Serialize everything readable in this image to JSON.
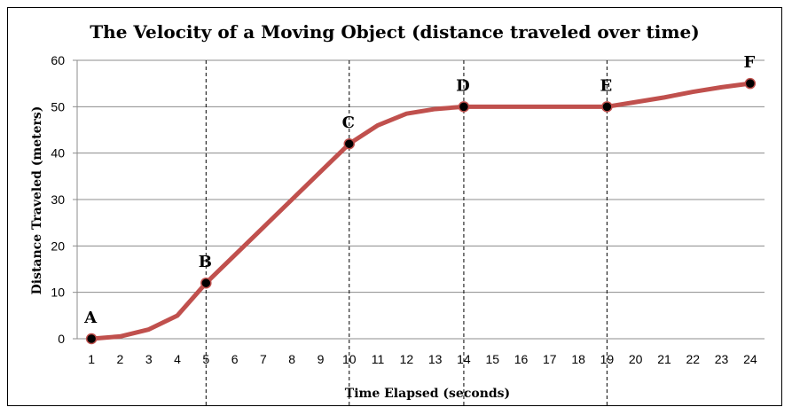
{
  "chart_data": {
    "type": "line",
    "title": "The Velocity of a Moving Object (distance traveled over time)",
    "xlabel": "Time Elapsed (seconds)",
    "ylabel": "Distance Traveled (meters)",
    "categories": [
      1,
      2,
      3,
      4,
      5,
      6,
      7,
      8,
      9,
      10,
      11,
      12,
      13,
      14,
      15,
      16,
      17,
      18,
      19,
      20,
      21,
      22,
      23,
      24
    ],
    "series": [
      {
        "color": "#c0504d",
        "values": [
          0,
          0.5,
          2,
          5,
          12,
          18,
          24,
          30,
          36,
          42,
          46,
          48.5,
          49.5,
          50,
          50,
          50,
          50,
          50,
          50,
          51,
          52,
          53.2,
          54.2,
          55
        ]
      }
    ],
    "ylim": [
      0,
      60
    ],
    "yticks": [
      0,
      10,
      20,
      30,
      40,
      50,
      60
    ],
    "grid": "horizontal",
    "point_color": "#000000",
    "labeled_points": [
      {
        "label": "A",
        "x": 1,
        "y": 0
      },
      {
        "label": "B",
        "x": 5,
        "y": 12
      },
      {
        "label": "C",
        "x": 10,
        "y": 42
      },
      {
        "label": "D",
        "x": 14,
        "y": 50
      },
      {
        "label": "E",
        "x": 19,
        "y": 50
      },
      {
        "label": "F",
        "x": 24,
        "y": 55
      }
    ],
    "reference_lines_x": [
      5,
      10,
      14,
      19
    ]
  }
}
